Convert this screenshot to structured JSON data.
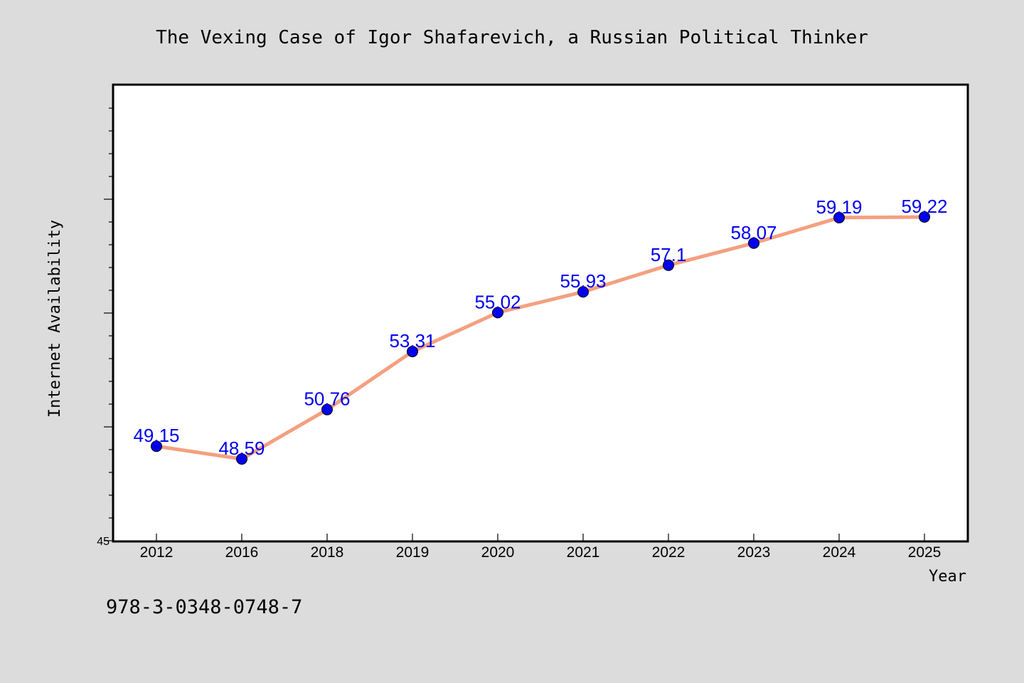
{
  "chart_data": {
    "type": "line",
    "title": "The Vexing Case of Igor Shafarevich, a Russian Political Thinker",
    "xlabel": "Year",
    "ylabel": "Internet Availability",
    "categories": [
      "2012",
      "2016",
      "2018",
      "2019",
      "2020",
      "2021",
      "2022",
      "2023",
      "2024",
      "2025"
    ],
    "series": [
      {
        "values": [
          49.15,
          48.59,
          50.76,
          53.31,
          55.02,
          55.93,
          57.1,
          58.07,
          59.19,
          59.22
        ],
        "labels": [
          "49.15",
          "48.59",
          "50.76",
          "53.31",
          "55.02",
          "55.93",
          "57.1",
          "58.07",
          "59.19",
          "59.22"
        ]
      }
    ],
    "ylim": [
      45,
      65
    ],
    "yticks_labeled": [
      "45"
    ],
    "grid": false,
    "line_color": "#f4a080",
    "marker_color": "#0000ee",
    "label_color": "#0000ee"
  },
  "footer": {
    "isbn": "978-3-0348-0748-7"
  }
}
